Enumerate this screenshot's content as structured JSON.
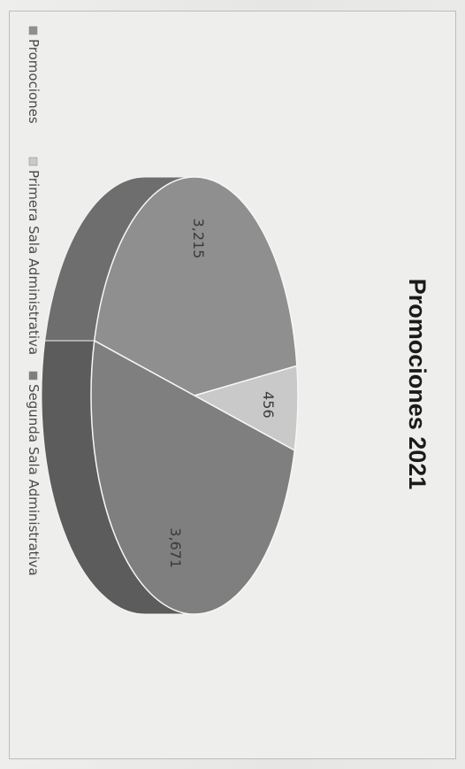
{
  "chart_data": {
    "type": "pie",
    "title": "Promociones 2021",
    "slices": [
      {
        "label": "Promociones",
        "value": 3215,
        "display": "3,215",
        "color": "#8f8f8f",
        "side_color": "#6e6e6e"
      },
      {
        "label": "Primera Sala Administrativa",
        "value": 456,
        "display": "456",
        "color": "#c9c9c9",
        "side_color": "#9a9a9a"
      },
      {
        "label": "Segunda Sala Administrativa",
        "value": 3671,
        "display": "3,671",
        "color": "#7f7f7f",
        "side_color": "#5c5c5c"
      }
    ],
    "legend_position": "bottom",
    "style": "3d"
  }
}
